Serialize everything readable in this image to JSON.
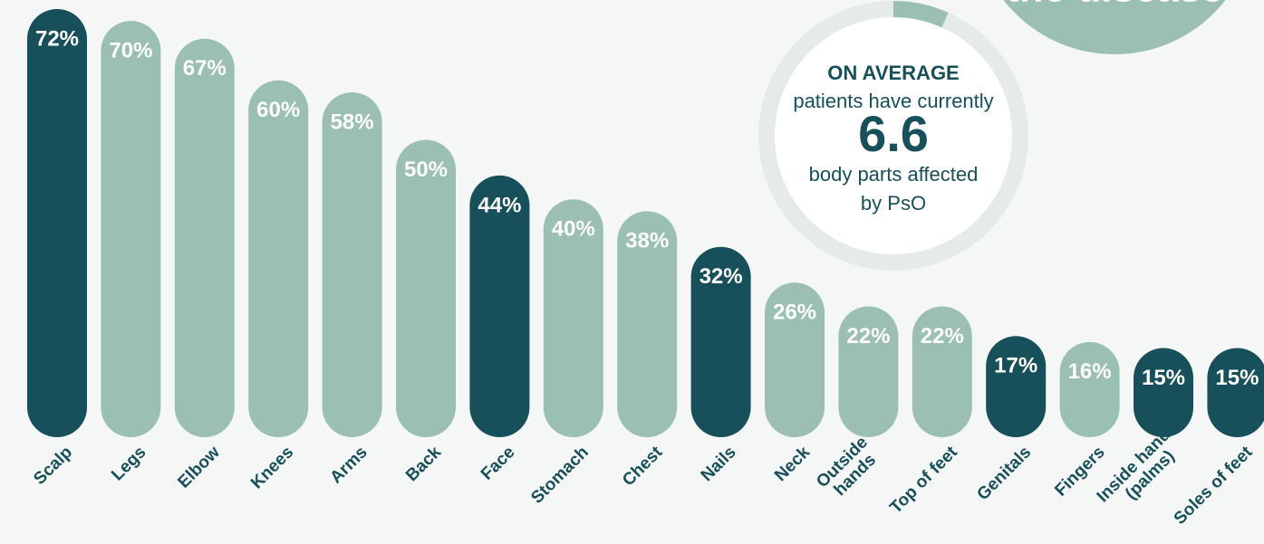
{
  "chart_data": {
    "type": "bar",
    "categories": [
      "Scalp",
      "Legs",
      "Elbow",
      "Knees",
      "Arms",
      "Back",
      "Face",
      "Stomach",
      "Chest",
      "Nails",
      "Neck",
      "Outside\nhands",
      "Top of feet",
      "Genitals",
      "Fingers",
      "Inside hands\n(palms)",
      "Soles of feet"
    ],
    "values": [
      72,
      70,
      67,
      60,
      58,
      50,
      44,
      40,
      38,
      32,
      26,
      22,
      22,
      17,
      16,
      15,
      15
    ],
    "value_labels": [
      "72%",
      "70%",
      "67%",
      "60%",
      "58%",
      "50%",
      "44%",
      "40%",
      "38%",
      "32%",
      "26%",
      "22%",
      "22%",
      "17%",
      "16%",
      "15%",
      "15%"
    ],
    "colors": [
      "#174f5a",
      "#9bbfb5",
      "#9bbfb5",
      "#9bbfb5",
      "#9bbfb5",
      "#9bbfb5",
      "#174f5a",
      "#9bbfb5",
      "#9bbfb5",
      "#174f5a",
      "#9bbfb5",
      "#9bbfb5",
      "#9bbfb5",
      "#174f5a",
      "#9bbfb5",
      "#174f5a",
      "#174f5a"
    ],
    "annotations": {
      "average_heading": "ON AVERAGE",
      "average_line1": "patients have currently",
      "average_value": "6.6",
      "average_line2": "body parts affected",
      "average_line3": "by PsO",
      "corner_text": "the disease"
    }
  }
}
